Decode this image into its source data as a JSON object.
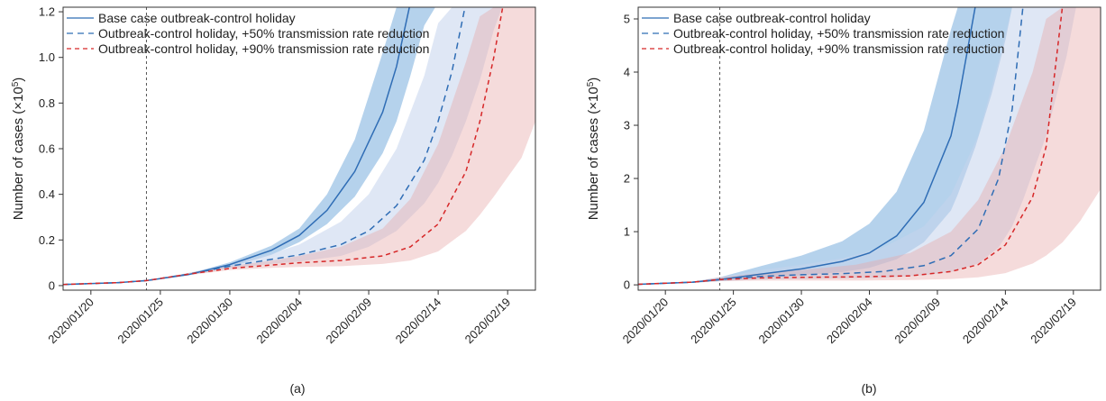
{
  "chart_data": [
    {
      "type": "line",
      "caption": "(a)",
      "ylabel": "Number of cases (×10",
      "ylabel_sup": "5",
      "ylabel_close": ")",
      "xlim": [
        "2020/01/18",
        "2020/02/21"
      ],
      "ylim": [
        -0.02,
        1.22
      ],
      "y_ticks": [
        0,
        0.2,
        0.4,
        0.6,
        0.8,
        1.0,
        1.2
      ],
      "y_tick_labels": [
        "0",
        "0.2",
        "0.4",
        "0.6",
        "0.8",
        "1.0",
        "1.2"
      ],
      "x_ticks": [
        "2020/01/20",
        "2020/01/25",
        "2020/01/30",
        "2020/02/04",
        "2020/02/09",
        "2020/02/14",
        "2020/02/19"
      ],
      "vline": "2020/01/24",
      "legend_position": "top-left",
      "series": [
        {
          "name": "Base case outbreak-control holiday",
          "color": "#2f6db5",
          "band_color": "#5b9bd5",
          "band_opacity": 0.45,
          "dash": "solid",
          "points": [
            {
              "x": "2020/01/18",
              "y": 0.005,
              "lo": 0.005,
              "hi": 0.005
            },
            {
              "x": "2020/01/22",
              "y": 0.013,
              "lo": 0.012,
              "hi": 0.014
            },
            {
              "x": "2020/01/24",
              "y": 0.022,
              "lo": 0.021,
              "hi": 0.023
            },
            {
              "x": "2020/01/27",
              "y": 0.048,
              "lo": 0.045,
              "hi": 0.051
            },
            {
              "x": "2020/01/30",
              "y": 0.092,
              "lo": 0.082,
              "hi": 0.102
            },
            {
              "x": "2020/02/02",
              "y": 0.155,
              "lo": 0.135,
              "hi": 0.175
            },
            {
              "x": "2020/02/04",
              "y": 0.22,
              "lo": 0.19,
              "hi": 0.25
            },
            {
              "x": "2020/02/06",
              "y": 0.33,
              "lo": 0.27,
              "hi": 0.4
            },
            {
              "x": "2020/02/08",
              "y": 0.5,
              "lo": 0.39,
              "hi": 0.64
            },
            {
              "x": "2020/02/10",
              "y": 0.76,
              "lo": 0.58,
              "hi": 1.02
            },
            {
              "x": "2020/02/11",
              "y": 0.96,
              "lo": 0.72,
              "hi": 1.24
            },
            {
              "x": "2020/02/12",
              "y": 1.24,
              "lo": 0.92,
              "hi": 1.24
            }
          ],
          "band_extra": [
            {
              "x": "2020/02/13",
              "lo": 1.14
            },
            {
              "x": "2020/02/13.8",
              "lo": 1.24
            }
          ]
        },
        {
          "name": "Outbreak-control holiday, +50% transmission rate reduction",
          "color": "#2f6db5",
          "band_color": "#c5d3ec",
          "band_opacity": 0.55,
          "dash": "7,5",
          "points": [
            {
              "x": "2020/01/18",
              "y": 0.005,
              "lo": 0.005,
              "hi": 0.005
            },
            {
              "x": "2020/01/22",
              "y": 0.013,
              "lo": 0.012,
              "hi": 0.014
            },
            {
              "x": "2020/01/24",
              "y": 0.022,
              "lo": 0.021,
              "hi": 0.023
            },
            {
              "x": "2020/01/27",
              "y": 0.05,
              "lo": 0.045,
              "hi": 0.055
            },
            {
              "x": "2020/01/30",
              "y": 0.085,
              "lo": 0.075,
              "hi": 0.097
            },
            {
              "x": "2020/02/02",
              "y": 0.115,
              "lo": 0.095,
              "hi": 0.14
            },
            {
              "x": "2020/02/04",
              "y": 0.135,
              "lo": 0.105,
              "hi": 0.18
            },
            {
              "x": "2020/02/07",
              "y": 0.18,
              "lo": 0.13,
              "hi": 0.28
            },
            {
              "x": "2020/02/09",
              "y": 0.24,
              "lo": 0.17,
              "hi": 0.4
            },
            {
              "x": "2020/02/11",
              "y": 0.35,
              "lo": 0.24,
              "hi": 0.6
            },
            {
              "x": "2020/02/13",
              "y": 0.55,
              "lo": 0.36,
              "hi": 0.92
            },
            {
              "x": "2020/02/14",
              "y": 0.72,
              "lo": 0.45,
              "hi": 1.15
            },
            {
              "x": "2020/02/15",
              "y": 0.94,
              "lo": 0.57,
              "hi": 1.24
            },
            {
              "x": "2020/02/16",
              "y": 1.24,
              "lo": 0.72,
              "hi": 1.24
            }
          ],
          "band_extra": [
            {
              "x": "2020/02/17",
              "lo": 0.9
            },
            {
              "x": "2020/02/18",
              "lo": 1.12
            },
            {
              "x": "2020/02/18.6",
              "lo": 1.24
            }
          ]
        },
        {
          "name": "Outbreak-control holiday, +90% transmission rate reduction",
          "color": "#d62728",
          "band_color": "#e8a9a9",
          "band_opacity": 0.42,
          "dash": "5,4",
          "points": [
            {
              "x": "2020/01/18",
              "y": 0.005,
              "lo": 0.005,
              "hi": 0.005
            },
            {
              "x": "2020/01/22",
              "y": 0.013,
              "lo": 0.012,
              "hi": 0.014
            },
            {
              "x": "2020/01/24",
              "y": 0.022,
              "lo": 0.021,
              "hi": 0.023
            },
            {
              "x": "2020/01/27",
              "y": 0.05,
              "lo": 0.045,
              "hi": 0.055
            },
            {
              "x": "2020/01/30",
              "y": 0.075,
              "lo": 0.068,
              "hi": 0.085
            },
            {
              "x": "2020/02/02",
              "y": 0.09,
              "lo": 0.078,
              "hi": 0.11
            },
            {
              "x": "2020/02/04",
              "y": 0.1,
              "lo": 0.082,
              "hi": 0.13
            },
            {
              "x": "2020/02/07",
              "y": 0.11,
              "lo": 0.085,
              "hi": 0.17
            },
            {
              "x": "2020/02/10",
              "y": 0.13,
              "lo": 0.095,
              "hi": 0.25
            },
            {
              "x": "2020/02/12",
              "y": 0.17,
              "lo": 0.11,
              "hi": 0.38
            },
            {
              "x": "2020/02/14",
              "y": 0.27,
              "lo": 0.15,
              "hi": 0.62
            },
            {
              "x": "2020/02/16",
              "y": 0.5,
              "lo": 0.24,
              "hi": 0.98
            },
            {
              "x": "2020/02/17",
              "y": 0.72,
              "lo": 0.31,
              "hi": 1.18
            },
            {
              "x": "2020/02/18",
              "y": 1.0,
              "lo": 0.39,
              "hi": 1.24
            },
            {
              "x": "2020/02/18.7",
              "y": 1.24,
              "lo": 0.45,
              "hi": 1.24
            }
          ],
          "band_extra": [
            {
              "x": "2020/02/20",
              "lo": 0.56
            },
            {
              "x": "2020/02/21",
              "lo": 0.72
            }
          ]
        }
      ]
    },
    {
      "type": "line",
      "caption": "(b)",
      "ylabel": "Number of cases (×10",
      "ylabel_sup": "5",
      "ylabel_close": ")",
      "xlim": [
        "2020/01/18",
        "2020/02/21"
      ],
      "ylim": [
        -0.1,
        5.22
      ],
      "y_ticks": [
        0,
        1,
        2,
        3,
        4,
        5
      ],
      "y_tick_labels": [
        "0",
        "1",
        "2",
        "3",
        "4",
        "5"
      ],
      "x_ticks": [
        "2020/01/20",
        "2020/01/25",
        "2020/01/30",
        "2020/02/04",
        "2020/02/09",
        "2020/02/14",
        "2020/02/19"
      ],
      "vline": "2020/01/24",
      "legend_position": "top-left",
      "series": [
        {
          "name": "Base case outbreak-control holiday",
          "color": "#2f6db5",
          "band_color": "#5b9bd5",
          "band_opacity": 0.45,
          "dash": "solid",
          "points": [
            {
              "x": "2020/01/18",
              "y": 0.01,
              "lo": 0.01,
              "hi": 0.01
            },
            {
              "x": "2020/01/22",
              "y": 0.05,
              "lo": 0.04,
              "hi": 0.06
            },
            {
              "x": "2020/01/24",
              "y": 0.1,
              "lo": 0.07,
              "hi": 0.14
            },
            {
              "x": "2020/01/27",
              "y": 0.2,
              "lo": 0.12,
              "hi": 0.35
            },
            {
              "x": "2020/01/30",
              "y": 0.3,
              "lo": 0.18,
              "hi": 0.55
            },
            {
              "x": "2020/02/02",
              "y": 0.44,
              "lo": 0.24,
              "hi": 0.82
            },
            {
              "x": "2020/02/04",
              "y": 0.6,
              "lo": 0.32,
              "hi": 1.15
            },
            {
              "x": "2020/02/06",
              "y": 0.92,
              "lo": 0.48,
              "hi": 1.75
            },
            {
              "x": "2020/02/08",
              "y": 1.55,
              "lo": 0.8,
              "hi": 2.9
            },
            {
              "x": "2020/02/10",
              "y": 2.8,
              "lo": 1.4,
              "hi": 4.8
            },
            {
              "x": "2020/02/10.5",
              "y": 3.4,
              "lo": 1.7,
              "hi": 5.25
            },
            {
              "x": "2020/02/11.8",
              "y": 5.25,
              "lo": 2.6,
              "hi": 5.25
            }
          ],
          "band_extra": [
            {
              "x": "2020/02/13",
              "lo": 3.6
            },
            {
              "x": "2020/02/14",
              "lo": 4.6
            },
            {
              "x": "2020/02/14.5",
              "lo": 5.25
            }
          ]
        },
        {
          "name": "Outbreak-control holiday, +50% transmission rate reduction",
          "color": "#2f6db5",
          "band_color": "#c5d3ec",
          "band_opacity": 0.55,
          "dash": "7,5",
          "points": [
            {
              "x": "2020/01/18",
              "y": 0.01,
              "lo": 0.01,
              "hi": 0.01
            },
            {
              "x": "2020/01/22",
              "y": 0.05,
              "lo": 0.04,
              "hi": 0.06
            },
            {
              "x": "2020/01/24",
              "y": 0.1,
              "lo": 0.07,
              "hi": 0.14
            },
            {
              "x": "2020/01/27",
              "y": 0.16,
              "lo": 0.1,
              "hi": 0.28
            },
            {
              "x": "2020/01/30",
              "y": 0.19,
              "lo": 0.11,
              "hi": 0.38
            },
            {
              "x": "2020/02/02",
              "y": 0.21,
              "lo": 0.12,
              "hi": 0.5
            },
            {
              "x": "2020/02/05",
              "y": 0.25,
              "lo": 0.13,
              "hi": 0.7
            },
            {
              "x": "2020/02/08",
              "y": 0.36,
              "lo": 0.18,
              "hi": 1.1
            },
            {
              "x": "2020/02/10",
              "y": 0.55,
              "lo": 0.24,
              "hi": 1.7
            },
            {
              "x": "2020/02/12",
              "y": 1.05,
              "lo": 0.4,
              "hi": 2.8
            },
            {
              "x": "2020/02/13.5",
              "y": 2.0,
              "lo": 0.7,
              "hi": 4.2
            },
            {
              "x": "2020/02/14.5",
              "y": 3.3,
              "lo": 1.1,
              "hi": 5.25
            },
            {
              "x": "2020/02/15.3",
              "y": 5.25,
              "lo": 1.6,
              "hi": 5.25
            }
          ],
          "band_extra": [
            {
              "x": "2020/02/17",
              "lo": 2.8
            },
            {
              "x": "2020/02/18.5",
              "lo": 4.3
            },
            {
              "x": "2020/02/19.2",
              "lo": 5.25
            }
          ]
        },
        {
          "name": "Outbreak-control holiday, +90% transmission rate reduction",
          "color": "#d62728",
          "band_color": "#e8a9a9",
          "band_opacity": 0.42,
          "dash": "5,4",
          "points": [
            {
              "x": "2020/01/18",
              "y": 0.01,
              "lo": 0.01,
              "hi": 0.01
            },
            {
              "x": "2020/01/22",
              "y": 0.05,
              "lo": 0.04,
              "hi": 0.06
            },
            {
              "x": "2020/01/24",
              "y": 0.1,
              "lo": 0.07,
              "hi": 0.14
            },
            {
              "x": "2020/01/27",
              "y": 0.13,
              "lo": 0.08,
              "hi": 0.22
            },
            {
              "x": "2020/01/30",
              "y": 0.14,
              "lo": 0.08,
              "hi": 0.28
            },
            {
              "x": "2020/02/03",
              "y": 0.15,
              "lo": 0.08,
              "hi": 0.38
            },
            {
              "x": "2020/02/07",
              "y": 0.17,
              "lo": 0.09,
              "hi": 0.6
            },
            {
              "x": "2020/02/10",
              "y": 0.25,
              "lo": 0.11,
              "hi": 1.0
            },
            {
              "x": "2020/02/12",
              "y": 0.38,
              "lo": 0.14,
              "hi": 1.6
            },
            {
              "x": "2020/02/14",
              "y": 0.75,
              "lo": 0.22,
              "hi": 2.6
            },
            {
              "x": "2020/02/16",
              "y": 1.65,
              "lo": 0.4,
              "hi": 4.0
            },
            {
              "x": "2020/02/17",
              "y": 2.6,
              "lo": 0.55,
              "hi": 5.0
            },
            {
              "x": "2020/02/18.2",
              "y": 5.25,
              "lo": 0.8,
              "hi": 5.25
            }
          ],
          "band_extra": [
            {
              "x": "2020/02/19.5",
              "lo": 1.2
            },
            {
              "x": "2020/02/21",
              "lo": 1.8
            }
          ]
        }
      ]
    }
  ]
}
